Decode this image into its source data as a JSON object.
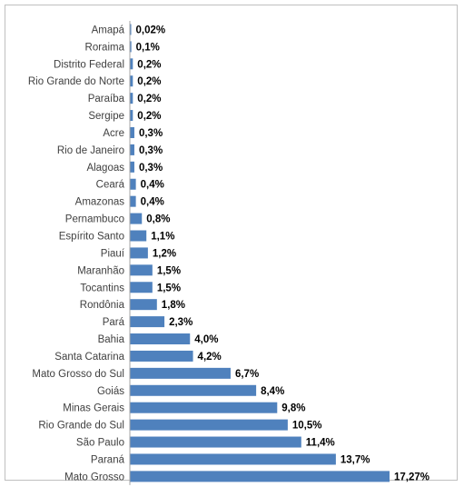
{
  "chart_data": {
    "type": "bar",
    "orientation": "horizontal",
    "categories": [
      "Amapá",
      "Roraima",
      "Distrito Federal",
      "Rio Grande do Norte",
      "Paraíba",
      "Sergipe",
      "Acre",
      "Rio de Janeiro",
      "Alagoas",
      "Ceará",
      "Amazonas",
      "Pernambuco",
      "Espírito Santo",
      "Piauí",
      "Maranhão",
      "Tocantins",
      "Rondônia",
      "Pará",
      "Bahia",
      "Santa Catarina",
      "Mato Grosso do Sul",
      "Goiás",
      "Minas Gerais",
      "Rio Grande do Sul",
      "São Paulo",
      "Paraná",
      "Mato Grosso"
    ],
    "values": [
      0.02,
      0.1,
      0.2,
      0.2,
      0.2,
      0.2,
      0.3,
      0.3,
      0.3,
      0.4,
      0.4,
      0.8,
      1.1,
      1.2,
      1.5,
      1.5,
      1.8,
      2.3,
      4.0,
      4.2,
      6.7,
      8.4,
      9.8,
      10.5,
      11.4,
      13.7,
      17.27
    ],
    "value_labels": [
      "0,02%",
      "0,1%",
      "0,2%",
      "0,2%",
      "0,2%",
      "0,2%",
      "0,3%",
      "0,3%",
      "0,3%",
      "0,4%",
      "0,4%",
      "0,8%",
      "1,1%",
      "1,2%",
      "1,5%",
      "1,5%",
      "1,8%",
      "2,3%",
      "4,0%",
      "4,2%",
      "6,7%",
      "8,4%",
      "9,8%",
      "10,5%",
      "11,4%",
      "13,7%",
      "17,27%"
    ],
    "title": "",
    "xlabel": "",
    "ylabel": "",
    "xlim": [
      0,
      17.27
    ],
    "grid": false,
    "legend": "none",
    "colors": {
      "bar": "#4f81bd",
      "axis": "#a6a6a6",
      "category_text": "#404040",
      "value_text": "#000000"
    }
  }
}
